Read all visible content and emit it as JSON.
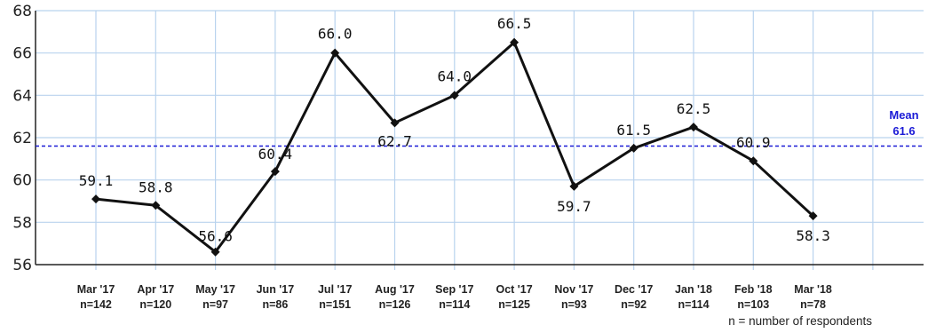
{
  "chart_data": {
    "type": "line",
    "categories": [
      "Mar '17",
      "Apr '17",
      "May '17",
      "Jun '17",
      "Jul '17",
      "Aug '17",
      "Sep '17",
      "Oct '17",
      "Nov '17",
      "Dec '17",
      "Jan '18",
      "Feb '18",
      "Mar '18"
    ],
    "respondents": [
      "n=142",
      "n=120",
      "n=97",
      "n=86",
      "n=151",
      "n=126",
      "n=114",
      "n=125",
      "n=93",
      "n=92",
      "n=114",
      "n=103",
      "n=78"
    ],
    "values": [
      59.1,
      58.8,
      56.6,
      60.4,
      66.0,
      62.7,
      64.0,
      66.5,
      59.7,
      61.5,
      62.5,
      60.9,
      58.3
    ],
    "value_labels": [
      "59.1",
      "58.8",
      "56.6",
      "60.4",
      "66.0",
      "62.7",
      "64.0",
      "66.5",
      "59.7",
      "61.5",
      "62.5",
      "60.9",
      "58.3"
    ],
    "ylim": [
      56,
      68
    ],
    "yticks": [
      56,
      58,
      60,
      62,
      64,
      66,
      68
    ],
    "grid": true,
    "mean": {
      "value": 61.6,
      "label": "Mean",
      "value_label": "61.6",
      "color": "#1a1ad6"
    },
    "footnote": "n = number of respondents",
    "line_color": "#111111",
    "grid_color": "#b9d3ee"
  }
}
